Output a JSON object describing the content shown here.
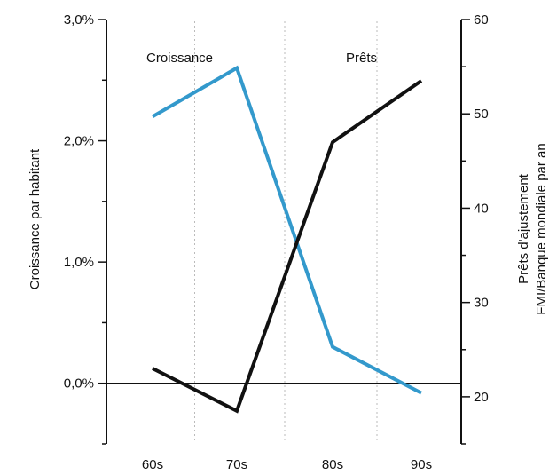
{
  "chart_data": {
    "type": "line",
    "title": "",
    "categories": [
      "60s",
      "70s",
      "80s",
      "90s"
    ],
    "left_axis": {
      "label": "Croissance par habitant",
      "ylim": [
        -0.5,
        3.0
      ],
      "ticks": [
        0.0,
        1.0,
        2.0,
        3.0
      ],
      "tick_labels": [
        "0,0%",
        "1,0%",
        "2,0%",
        "3,0%"
      ]
    },
    "right_axis": {
      "label_line1": "Prêts d'ajustement",
      "label_line2": "FMI/Banque mondiale par an",
      "ylim": [
        15,
        60
      ],
      "ticks": [
        20,
        30,
        40,
        50,
        60
      ],
      "tick_labels": [
        "20",
        "30",
        "40",
        "50",
        "60"
      ]
    },
    "series": [
      {
        "name": "Croissance",
        "axis": "left",
        "color": "#3399cc",
        "values": [
          2.2,
          2.6,
          0.3,
          -0.08
        ]
      },
      {
        "name": "Prêts",
        "axis": "right",
        "color": "#111111",
        "values": [
          23,
          18.5,
          47,
          53.5
        ]
      }
    ],
    "grid": "vertical dotted between categories",
    "zero_line": true
  }
}
